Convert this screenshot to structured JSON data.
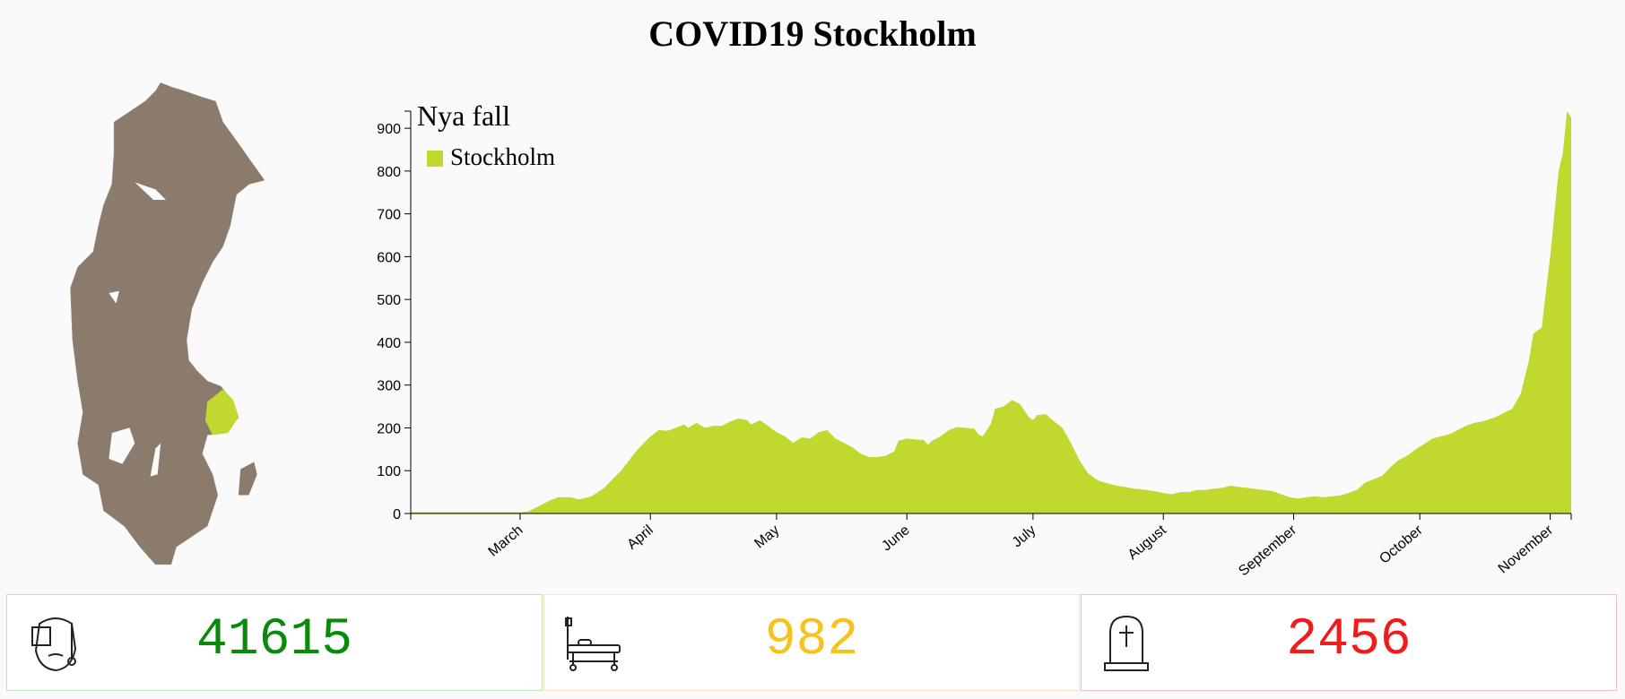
{
  "header": {
    "title": "COVID19 Stockholm"
  },
  "chart_data": {
    "type": "area",
    "title": "Nya fall",
    "x": [
      0,
      26,
      28,
      30,
      33,
      35,
      38,
      40,
      43,
      46,
      50,
      54,
      57,
      59,
      61,
      63,
      65,
      66,
      68,
      70,
      72,
      74,
      76,
      78,
      80,
      81,
      83,
      85,
      87,
      89,
      91,
      93,
      95,
      97,
      99,
      101,
      103,
      105,
      107,
      109,
      111,
      113,
      115,
      116,
      118,
      120,
      122,
      123,
      124,
      126,
      128,
      130,
      132,
      134,
      135,
      136,
      138,
      139,
      141,
      143,
      145,
      147,
      148,
      149,
      151,
      153,
      155,
      157,
      159,
      161,
      163,
      164,
      166,
      168,
      170,
      172,
      175,
      177,
      179,
      181,
      183,
      185,
      187,
      189,
      191,
      193,
      195,
      197,
      199,
      201,
      203,
      205,
      207,
      209,
      211,
      213,
      215,
      217,
      219,
      221,
      223,
      225,
      227,
      229,
      231,
      233,
      235,
      237,
      239,
      241,
      243,
      245,
      247,
      249,
      251,
      253,
      255,
      257,
      258,
      260,
      262,
      264,
      266,
      267,
      269,
      270,
      271,
      272,
      273,
      274,
      275,
      276
    ],
    "series": [
      {
        "name": "Stockholm",
        "color": "#c1d82f",
        "values": [
          3,
          3,
          5,
          15,
          30,
          38,
          38,
          33,
          40,
          60,
          100,
          150,
          180,
          195,
          193,
          200,
          208,
          200,
          212,
          200,
          205,
          205,
          215,
          222,
          218,
          208,
          218,
          205,
          190,
          180,
          165,
          178,
          175,
          190,
          195,
          175,
          165,
          155,
          140,
          132,
          132,
          135,
          145,
          170,
          175,
          173,
          172,
          160,
          170,
          180,
          195,
          202,
          200,
          198,
          185,
          180,
          210,
          245,
          250,
          265,
          255,
          225,
          218,
          230,
          232,
          215,
          200,
          165,
          125,
          95,
          80,
          75,
          70,
          65,
          62,
          58,
          55,
          52,
          48,
          45,
          50,
          50,
          55,
          55,
          58,
          60,
          65,
          62,
          60,
          57,
          55,
          52,
          45,
          38,
          35,
          38,
          40,
          38,
          40,
          42,
          48,
          55,
          72,
          80,
          88,
          108,
          125,
          135,
          150,
          162,
          175,
          180,
          185,
          195,
          205,
          212,
          215,
          222,
          225,
          235,
          245,
          280,
          360,
          420,
          435,
          520,
          600,
          700,
          800,
          840,
          940,
          925
        ]
      }
    ],
    "xlim": [
      0,
      276
    ],
    "xticks": [
      {
        "value": 26,
        "label": "March"
      },
      {
        "value": 57,
        "label": "April"
      },
      {
        "value": 87,
        "label": "May"
      },
      {
        "value": 118,
        "label": "June"
      },
      {
        "value": 148,
        "label": "July"
      },
      {
        "value": 179,
        "label": "August"
      },
      {
        "value": 210,
        "label": "September"
      },
      {
        "value": 240,
        "label": "October"
      },
      {
        "value": 271,
        "label": "November"
      }
    ],
    "ylim": [
      0,
      940
    ],
    "yticks": [
      0,
      100,
      200,
      300,
      400,
      500,
      600,
      700,
      800,
      900
    ]
  },
  "stats": [
    {
      "value": "41615",
      "color": "#0a8a0a",
      "border": "#bfe3bf"
    },
    {
      "value": "982",
      "color": "#f7c21b",
      "border": "#fbe5c2"
    },
    {
      "value": "2456",
      "color": "#f21a1a",
      "border": "#f6c0c0"
    }
  ]
}
